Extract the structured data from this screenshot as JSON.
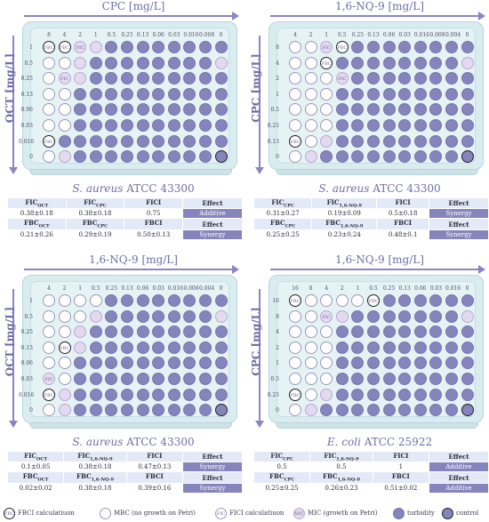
{
  "panels": [
    {
      "top_axis": "CPC [mg/L]",
      "side_axis": "OCT [mg/L]",
      "col_labels": [
        "8",
        "4",
        "2",
        "1",
        "0.5",
        "0.25",
        "0.13",
        "0.06",
        "0.03",
        "0.016",
        "0.008",
        "0"
      ],
      "row_labels": [
        "1",
        "0.5",
        "0.25",
        "0.13",
        "0.06",
        "0.03",
        "0.016",
        "0"
      ],
      "grid": [
        "FFEMTTTTTTTT",
        "WWMTTTTTTTTM",
        "WEMTTTTTTTTT",
        "WWTTTTTTTTTT",
        "WWTTTTTTTTTT",
        "WWTTTTTTTTTT",
        "FTTTTTTTTTTT",
        "WMTTTTTTTTTC"
      ],
      "strain_name": "S. aureus",
      "strain_code": " ATCC 43300",
      "table": [
        [
          "FIC",
          "OCT",
          "FIC",
          "CPC",
          "FICI",
          "",
          "Effect"
        ],
        [
          "0.38±0.18",
          "",
          "0.38±0.18",
          "",
          "0.75",
          "",
          "Additive"
        ],
        [
          "FBC",
          "OCT",
          "FBC",
          "CPC",
          "FBCI",
          "",
          "Effect"
        ],
        [
          "0.21±0.26",
          "",
          "0.29±0.19",
          "",
          "0.50±0.13",
          "",
          "Synergy"
        ]
      ]
    },
    {
      "top_axis": "1,6-NQ-9 [mg/L]",
      "side_axis": "CPC [mg/L]",
      "col_labels": [
        "4",
        "2",
        "1",
        "0.5",
        "0.25",
        "0.13",
        "0.06",
        "0.03",
        "0.016",
        "0.008",
        "0.004",
        "0"
      ],
      "row_labels": [
        "8",
        "4",
        "2",
        "1",
        "0.5",
        "0.25",
        "0.13",
        "0"
      ],
      "grid": [
        "WWEFTTTTTTTT",
        "WWFTTTTTTTTM",
        "WWWETTTTTTTT",
        "WWWTTTTTTTTT",
        "WWWTTTTTTTTT",
        "WWWTTTTTTTTT",
        "FWMTTTTTTTTT",
        "WMTTTTTTTTTC"
      ],
      "strain_name": "S. aureus",
      "strain_code": " ATCC 43300",
      "table": [
        [
          "FIC",
          "CPC",
          "FIC",
          "1,6-NQ-9",
          "FICI",
          "",
          "Effect"
        ],
        [
          "0.31±0.27",
          "",
          "0.19±0.09",
          "",
          "0.5±0.18",
          "",
          "Synergy"
        ],
        [
          "FBC",
          "CPC",
          "FBC",
          "1,6-NQ-9",
          "FBCI",
          "",
          "Effect"
        ],
        [
          "0.25±0.25",
          "",
          "0.23±0.24",
          "",
          "0.48±0.1",
          "",
          "Synergy"
        ]
      ]
    },
    {
      "top_axis": "1,6-NQ-9 [mg/L]",
      "side_axis": "OCT [mg/L]",
      "col_labels": [
        "4",
        "2",
        "1",
        "0.5",
        "0.25",
        "0.13",
        "0.06",
        "0.03",
        "0.016",
        "0.008",
        "0.004",
        "0"
      ],
      "row_labels": [
        "1",
        "0.5",
        "0.25",
        "0.13",
        "0.06",
        "0.03",
        "0.016",
        "0"
      ],
      "grid": [
        "WWWWTTTTTTTT",
        "WWWMTTTTTTTM",
        "WWMTTTTTTTTT",
        "WFMTTTTTTTTT",
        "WWTTTTTTTTTT",
        "EWTTTTTTTTTT",
        "FMTTTTTTTTTT",
        "WMTTTTTTTTTC"
      ],
      "strain_name": "S. aureus",
      "strain_code": " ATCC 43300",
      "table": [
        [
          "FIC",
          "OCT",
          "FIC",
          "1,6-NQ-9",
          "FICI",
          "",
          "Effect"
        ],
        [
          "0.1±0.05",
          "",
          "0.38±0.18",
          "",
          "0.47±0.13",
          "",
          "Synergy"
        ],
        [
          "FBC",
          "OCT",
          "FBC",
          "1,6-NQ-9",
          "FBCI",
          "",
          "Effect"
        ],
        [
          "0.02±0.02",
          "",
          "0.38±0.18",
          "",
          "0.39±0.16",
          "",
          "Synergy"
        ]
      ]
    },
    {
      "top_axis": "1,6-NQ-9 [mg/L]",
      "side_axis": "CPC [mg/L]",
      "col_labels": [
        "16",
        "8",
        "4",
        "2",
        "1",
        "0.5",
        "0.25",
        "0.13",
        "0.06",
        "0.03",
        "0.016",
        "0"
      ],
      "row_labels": [
        "16",
        "8",
        "4",
        "2",
        "1",
        "0.5",
        "0.25",
        "0"
      ],
      "grid": [
        "FWWWWFTTTTTT",
        "WWEMTTTTTTTM",
        "WWWTTTTTTTTT",
        "WWWTTTTTTTTT",
        "WWWTTTTTTTTT",
        "WWWTTTTTTTTT",
        "FWMTTTTTTTTT",
        "WMTTTTTTTTTC"
      ],
      "strain_name": "E. coli",
      "strain_code": " ATCC 25922",
      "table": [
        [
          "FIC",
          "CPC",
          "FIC",
          "1,6-NQ-9",
          "FICI",
          "",
          "Effect"
        ],
        [
          "0.5",
          "",
          "0.5",
          "",
          "1",
          "",
          "Additive"
        ],
        [
          "FBC",
          "CPC",
          "FBC",
          "1,6-NQ-9",
          "FBCI",
          "",
          "Effect"
        ],
        [
          "0.25±0.25",
          "",
          "0.26±0.23",
          "",
          "0.51±0.02",
          "",
          "Additive"
        ]
      ]
    }
  ],
  "legend": {
    "fbc_tag": "FBC",
    "fbc_text": "FBCI calculatiuon",
    "mbc_text": "MBC (no growth on Petri)",
    "fic_tag": "FIC",
    "fic_text": "FICI calculatiuon",
    "mic_tag": "MIC",
    "mic_text": "MIC (growth on Petri)",
    "turbidity_text": "turbidity",
    "control_text": "control"
  },
  "colors": {
    "turbidity": "#8684bc",
    "mic": "#e4daf0",
    "mbc": "#ffffff",
    "plate": "#d9ecef",
    "header": "#e3e9f6",
    "axis": "#6f6fa8"
  }
}
